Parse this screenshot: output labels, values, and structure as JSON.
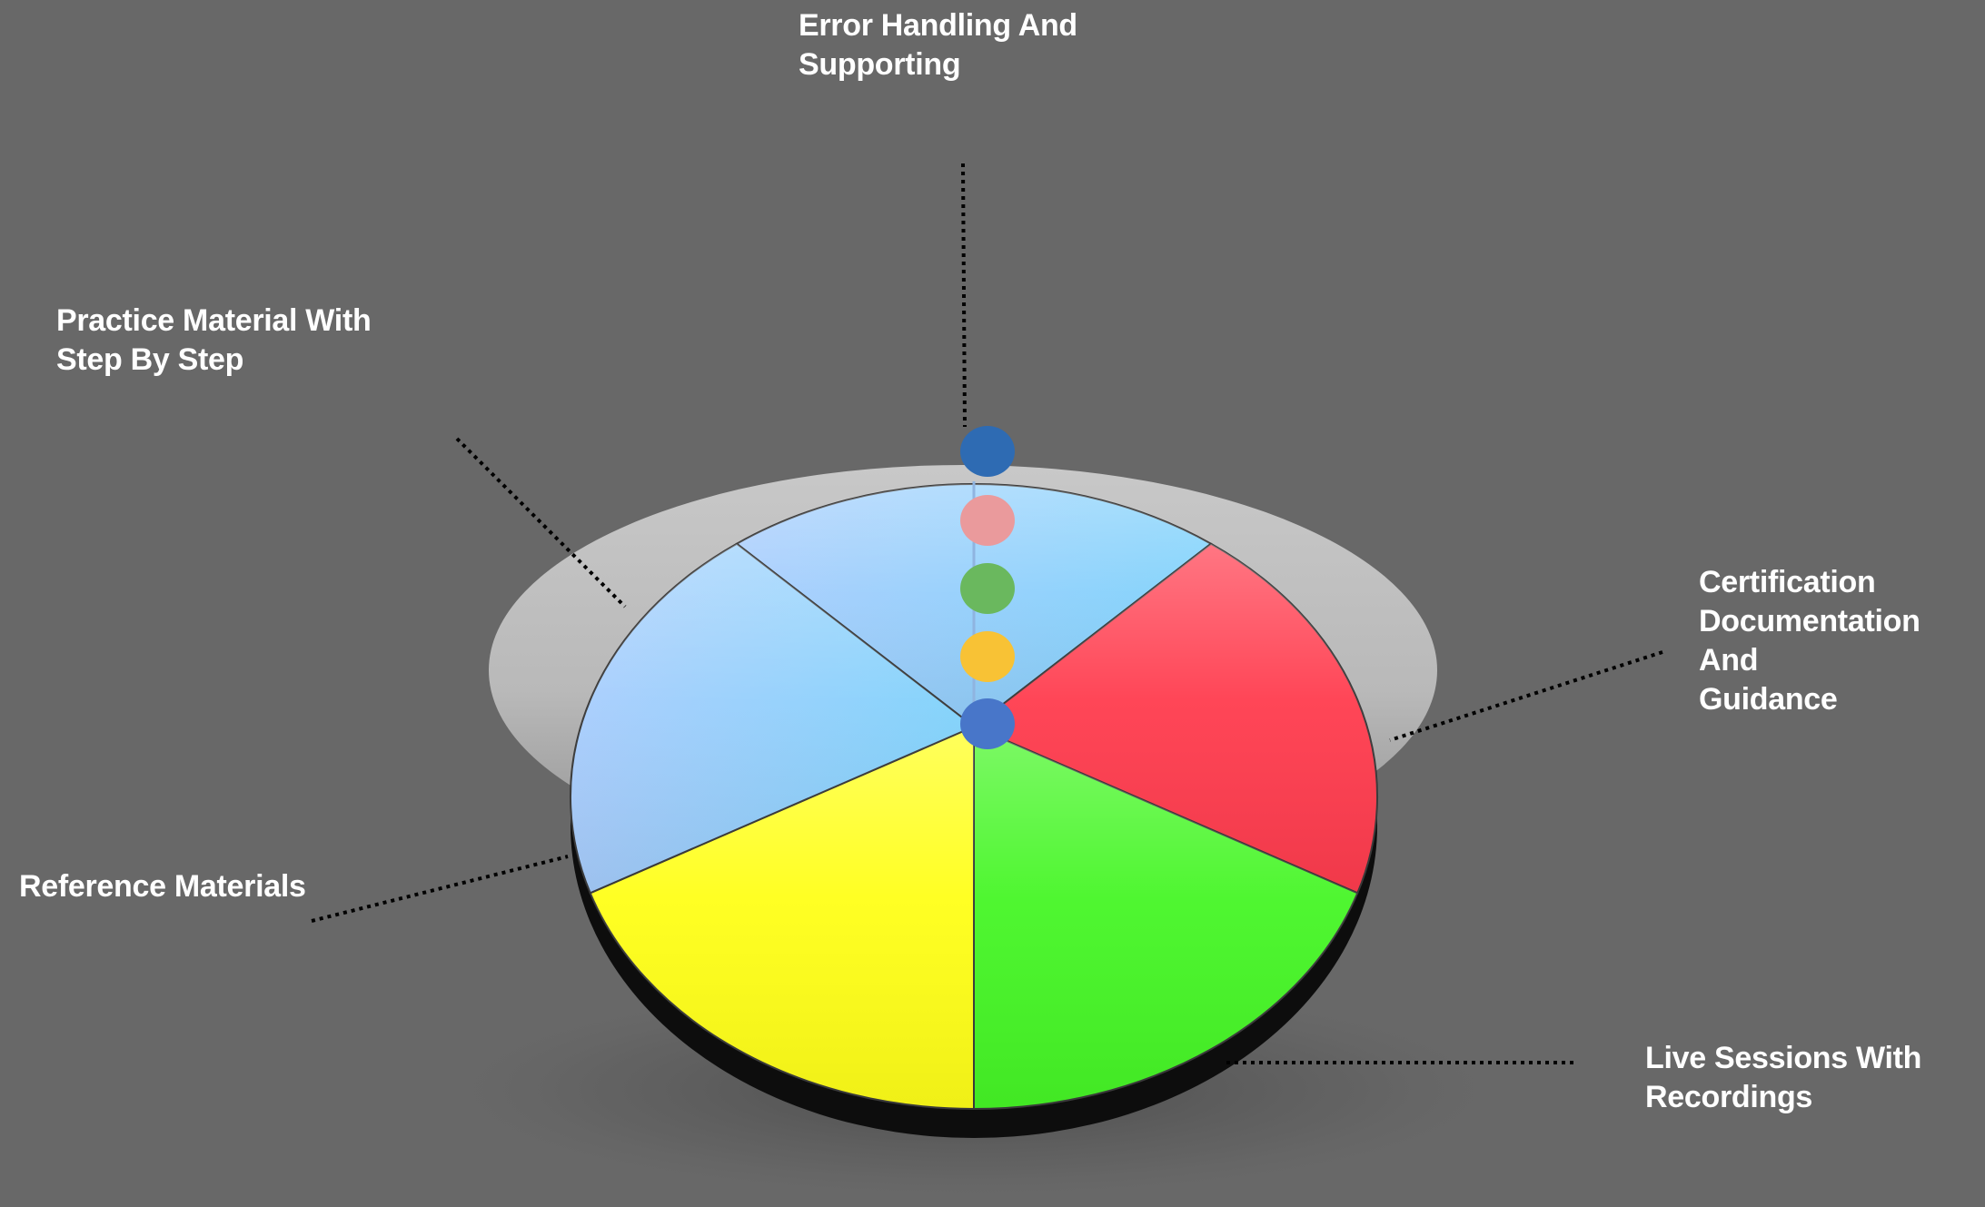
{
  "chart_data": {
    "type": "pie",
    "title": "",
    "slices": [
      {
        "label": "Error Handling And\nSupporting",
        "value": 20,
        "color": "#a6d3ff"
      },
      {
        "label": "Certification\nDocumentation And\nGuidance",
        "value": 20,
        "color": "#ff3c4e"
      },
      {
        "label": "Live Sessions With\nRecordings",
        "value": 20,
        "color": "#46f626"
      },
      {
        "label": "Reference Materials",
        "value": 20,
        "color": "#ffff18"
      },
      {
        "label": "Practice Material With\nStep By Step",
        "value": 20,
        "color": "#a6d3ff"
      }
    ],
    "markers": [
      {
        "color": "#2e6bb3"
      },
      {
        "color": "#ea9a9c"
      },
      {
        "color": "#6ab85e"
      },
      {
        "color": "#f8c235"
      },
      {
        "color": "#4876c9"
      }
    ]
  }
}
